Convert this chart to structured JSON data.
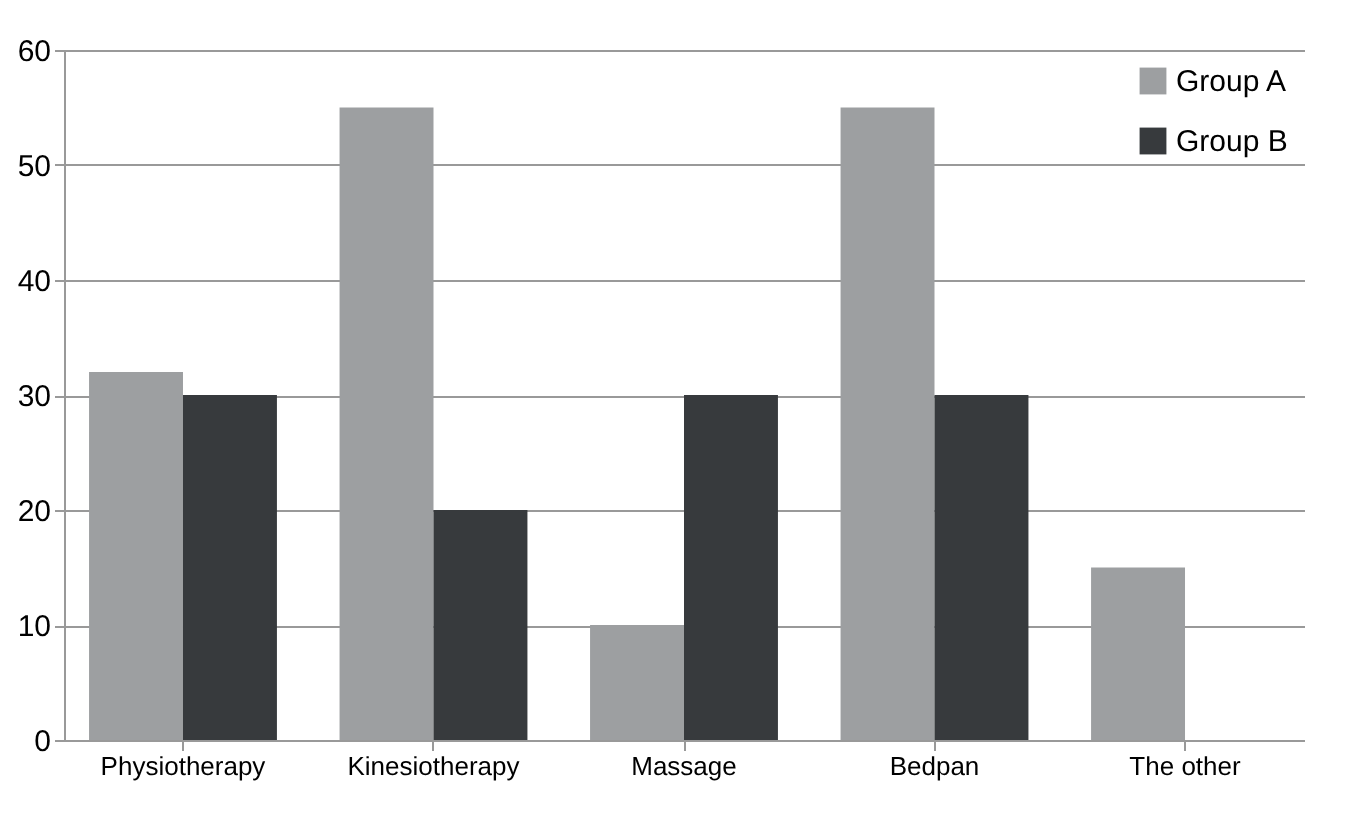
{
  "chart_data": {
    "type": "bar",
    "categories": [
      "Physiotherapy",
      "Kinesiotherapy",
      "Massage",
      "Bedpan",
      "The other"
    ],
    "series": [
      {
        "name": "Group A",
        "color": "#9d9fa1",
        "values": [
          32,
          55,
          10,
          55,
          15
        ]
      },
      {
        "name": "Group B",
        "color": "#373a3d",
        "values": [
          30,
          20,
          30,
          30,
          0
        ]
      }
    ],
    "ylim": [
      0,
      60
    ],
    "yticks": [
      0,
      10,
      20,
      30,
      40,
      50,
      60
    ],
    "grid": "y",
    "legend": "top right"
  }
}
